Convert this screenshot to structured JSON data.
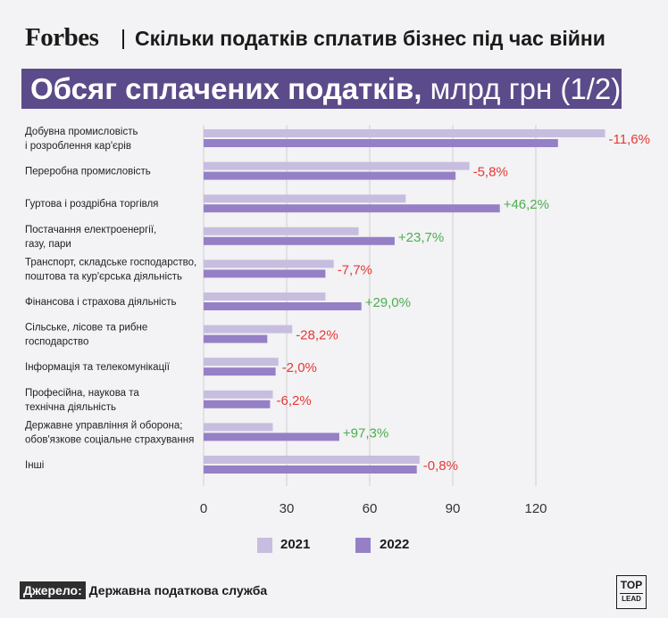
{
  "header": {
    "brand": "Forbes",
    "title": "Скільки податків сплатив бізнес під час війни"
  },
  "banner": {
    "bold": "Обсяг сплачених податків,",
    "rest": " млрд грн (1/2)"
  },
  "colors": {
    "bg": "#f3f2f4",
    "banner": "#5c4b8a",
    "series_2021": "#c7bddf",
    "series_2022": "#9580c6",
    "positive": "#4caf50",
    "negative": "#e53935",
    "grid": "#cfcfcf"
  },
  "chart_data": {
    "type": "bar",
    "orientation": "horizontal",
    "categories": [
      [
        "Добувна промисловість",
        "і розроблення кар'єрів"
      ],
      [
        "Переробна промисловість"
      ],
      [
        "Гуртова і роздрібна торгівля"
      ],
      [
        "Постачання електроенергії,",
        "газу, пари"
      ],
      [
        "Транспорт, складське господарство,",
        "поштова та кур'єрська діяльність"
      ],
      [
        "Фінансова і страхова діяльність"
      ],
      [
        "Сільське, лісове та рибне",
        "господарство"
      ],
      [
        "Інформація та телекомунікації"
      ],
      [
        "Професійна, наукова та",
        "технічна діяльність"
      ],
      [
        "Державне управління й оборона;",
        "обов'язкове соціальне страхування"
      ],
      [
        "Інші"
      ]
    ],
    "series": [
      {
        "name": "2021",
        "values": [
          145,
          96,
          73,
          56,
          47,
          44,
          32,
          27,
          25,
          25,
          78
        ]
      },
      {
        "name": "2022",
        "values": [
          128,
          91,
          107,
          69,
          44,
          57,
          23,
          26,
          24,
          49,
          77
        ]
      }
    ],
    "changes": [
      "-11,6%",
      "-5,8%",
      "+46,2%",
      "+23,7%",
      "-7,7%",
      "+29,0%",
      "-28,2%",
      "-2,0%",
      "-6,2%",
      "+97,3%",
      "-0,8%"
    ],
    "xticks": [
      0,
      30,
      60,
      90,
      120
    ],
    "xlim": [
      0,
      145
    ],
    "grid": true,
    "legend": "bottom-center"
  },
  "legend": {
    "label_2021": "2021",
    "label_2022": "2022"
  },
  "footer": {
    "source_label": "Джерело:",
    "source_text": "Державна податкова служба",
    "logo_top": "TOP",
    "logo_bottom": "LEAD"
  }
}
